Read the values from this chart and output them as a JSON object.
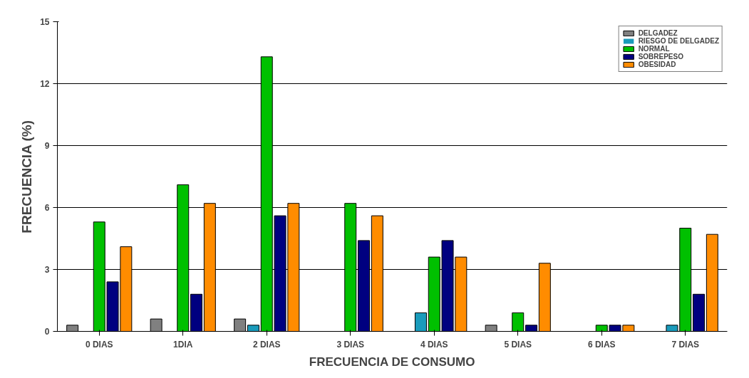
{
  "chart_data": {
    "type": "bar",
    "xlabel": "FRECUENCIA DE CONSUMO",
    "ylabel": "FRECUENCIA (%)",
    "categories": [
      "0 DIAS",
      "1DIA",
      "2 DIAS",
      "3 DIAS",
      "4 DIAS",
      "5 DIAS",
      "6 DIAS",
      "7 DIAS"
    ],
    "series": [
      {
        "name": "DELGADEZ",
        "color": "#808080",
        "values": [
          0.3,
          0.6,
          0.6,
          0,
          0,
          0.3,
          0,
          0
        ]
      },
      {
        "name": "RIESGO DE DELGADEZ",
        "color": "#1a9bbb",
        "values": [
          0,
          0,
          0.3,
          0,
          0.9,
          0,
          0,
          0.3
        ]
      },
      {
        "name": "NORMAL",
        "color": "#00c000",
        "values": [
          5.3,
          7.1,
          13.3,
          6.2,
          3.6,
          0.9,
          0.3,
          5.0
        ]
      },
      {
        "name": "SOBREPESO",
        "color": "#000080",
        "values": [
          2.4,
          1.8,
          5.6,
          4.4,
          4.4,
          0.3,
          0.3,
          1.8
        ]
      },
      {
        "name": "OBESIDAD",
        "color": "#ff8c00",
        "values": [
          4.1,
          6.2,
          6.2,
          5.6,
          3.6,
          3.3,
          0.3,
          4.7
        ]
      }
    ],
    "ylim": [
      0,
      15
    ],
    "yticks": [
      0,
      3,
      6,
      9,
      12,
      15
    ],
    "grid": "y",
    "legend": "top right"
  }
}
